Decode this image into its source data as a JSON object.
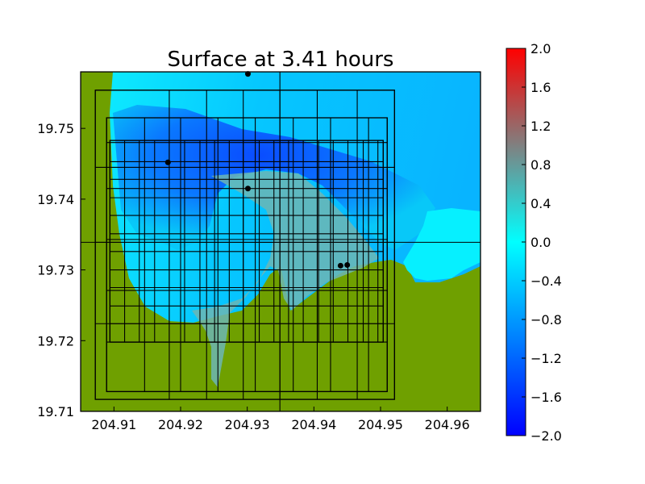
{
  "chart_data": {
    "type": "heatmap",
    "title": "Surface at 3.41 hours",
    "xlabel": "",
    "ylabel": "",
    "xlim": [
      204.905,
      204.965
    ],
    "ylim": [
      19.71,
      19.758
    ],
    "x_ticks": [
      "204.91",
      "204.92",
      "204.93",
      "204.94",
      "204.95",
      "204.96"
    ],
    "y_ticks": [
      "19.71",
      "19.72",
      "19.73",
      "19.74",
      "19.75"
    ],
    "colorbar": {
      "min": -2.0,
      "max": 2.0,
      "ticks": [
        "2.0",
        "1.6",
        "1.2",
        "0.8",
        "0.4",
        "0.0",
        "−0.4",
        "−0.8",
        "−1.2",
        "−1.6",
        "−2.0"
      ],
      "colors": {
        "low": "#0000ff",
        "mid_low": "#00ffff",
        "mid_high": "#808080",
        "high": "#ff0000"
      }
    },
    "land_color": "#6fa000",
    "gauges": [
      {
        "x": 204.9301,
        "y": 19.7577
      },
      {
        "x": 204.9181,
        "y": 19.7452
      },
      {
        "x": 204.9301,
        "y": 19.7415
      },
      {
        "x": 204.944,
        "y": 19.7306
      },
      {
        "x": 204.945,
        "y": 19.7307
      }
    ],
    "grid_levels": [
      {
        "x0": 204.905,
        "x1": 204.965,
        "y0": 19.71,
        "y1": 19.758,
        "xs": [
          204.9349
        ],
        "ys": [
          19.7339
        ]
      },
      {
        "x0": 204.9072,
        "x1": 204.9521,
        "y0": 19.7117,
        "y1": 19.7554,
        "xs": [
          204.9072,
          204.9183,
          204.9239,
          204.9294,
          204.9349,
          204.9405,
          204.9465,
          204.9521
        ],
        "ys": [
          19.7117,
          19.7224,
          19.7339,
          19.7445,
          19.7554
        ]
      },
      {
        "x0": 204.9089,
        "x1": 204.951,
        "y0": 19.7128,
        "y1": 19.7515,
        "xs": [
          204.9089,
          204.9146,
          204.92,
          204.9256,
          204.9312,
          204.9369,
          204.9425,
          204.9482,
          204.951
        ],
        "ys": [
          19.7128,
          19.7198,
          19.7271,
          19.7343,
          19.7415,
          19.748,
          19.7515
        ]
      },
      {
        "x0": 204.9094,
        "x1": 204.9504,
        "y0": 19.7198,
        "y1": 19.7483,
        "xs": [
          204.9094,
          204.9116,
          204.9138,
          204.9161,
          204.9183,
          204.9206,
          204.9229,
          204.9251,
          204.9273,
          204.9294,
          204.9318,
          204.934,
          204.9362,
          204.9384,
          204.9407,
          204.9429,
          204.9451,
          204.9474,
          204.9496,
          204.9504
        ],
        "ys": [
          19.7198,
          19.7224,
          19.7249,
          19.7275,
          19.73,
          19.7326,
          19.7351,
          19.7377,
          19.7402,
          19.7428,
          19.7453,
          19.7483
        ]
      }
    ]
  }
}
